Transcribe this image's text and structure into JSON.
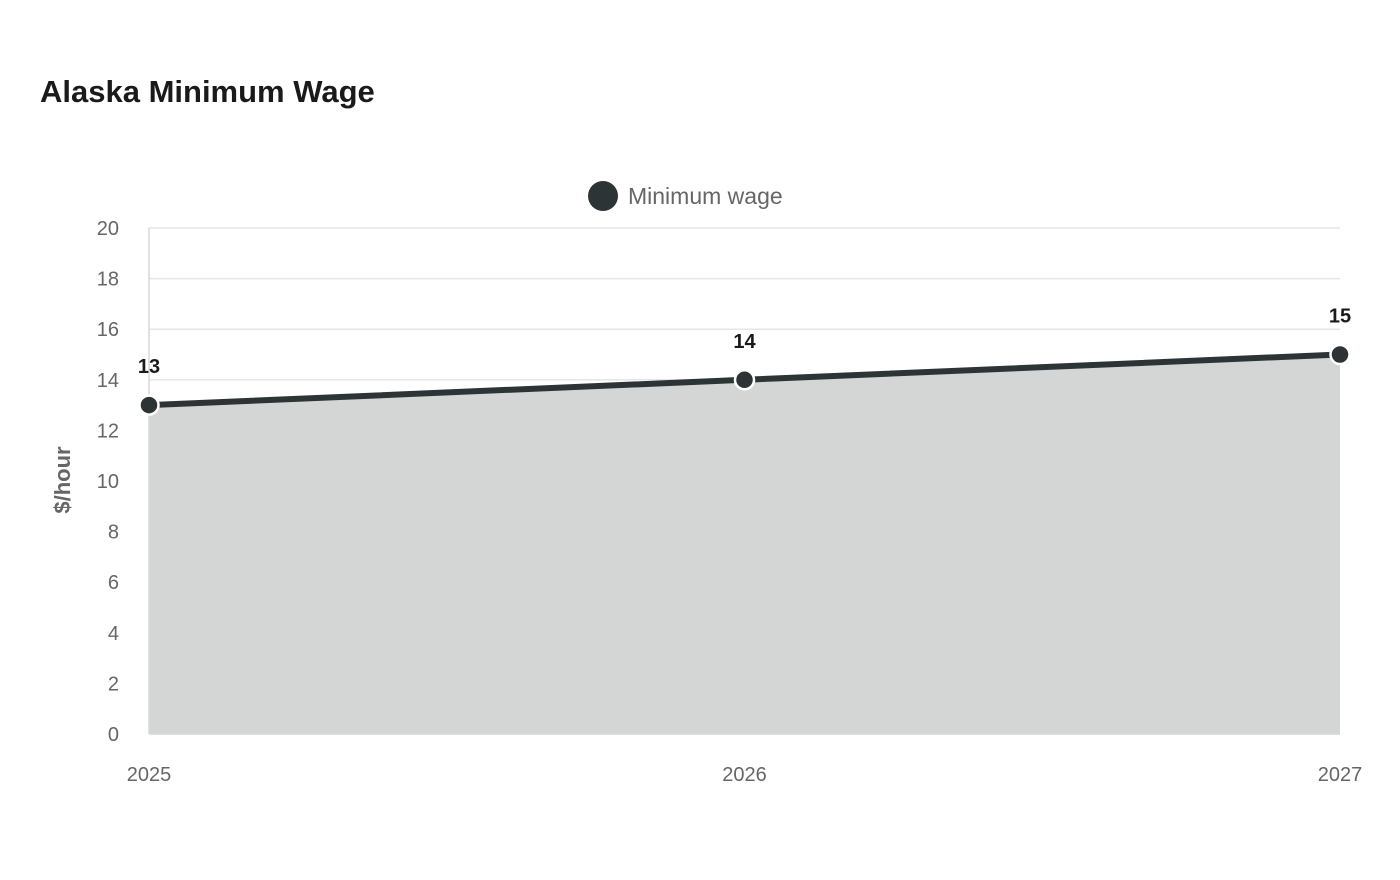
{
  "page": {
    "title": "Alaska Minimum Wage"
  },
  "chart_data": {
    "type": "area",
    "title": "Alaska Minimum Wage",
    "xlabel": "",
    "ylabel": "$/hour",
    "categories": [
      "2025",
      "2026",
      "2027"
    ],
    "series": [
      {
        "name": "Minimum wage",
        "values": [
          13,
          14,
          15
        ],
        "color": "#2d3436",
        "fill": "#d4d6d5"
      }
    ],
    "ylim": [
      0,
      20
    ],
    "yticks": [
      0,
      2,
      4,
      6,
      8,
      10,
      12,
      14,
      16,
      18,
      20
    ],
    "data_labels": [
      "13",
      "14",
      "15"
    ],
    "grid": true,
    "legend_position": "top-center"
  }
}
